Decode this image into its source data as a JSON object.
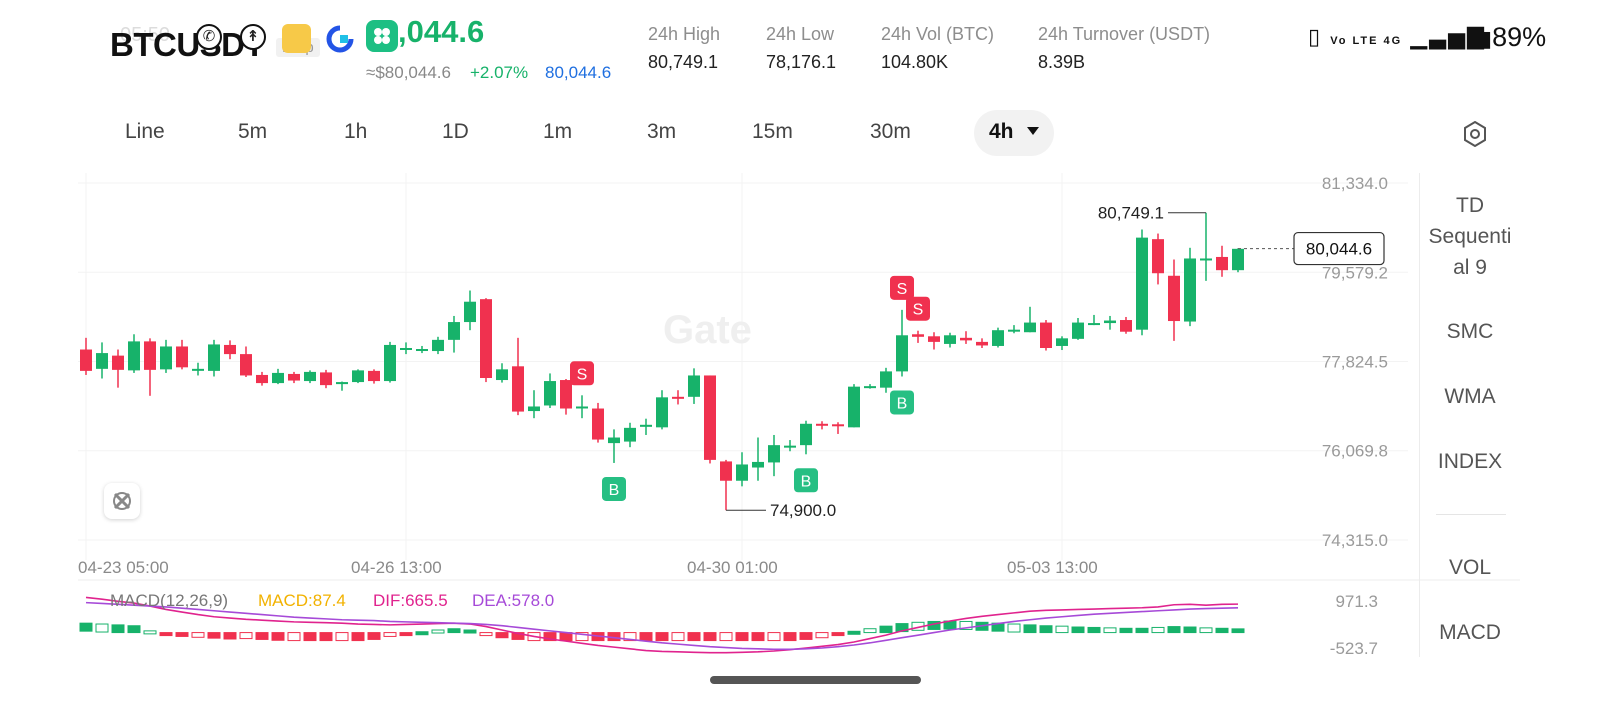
{
  "header": {
    "symbol": "BTCUSDT",
    "clock_ghost": "05:50",
    "perp_badge": "Perp",
    "last_price": "80,044.6",
    "last_price_visible": ",044.6",
    "usd_price": "≈$80,044.6",
    "change_pct": "+2.07%",
    "mark_price": "80,044.6"
  },
  "stats": [
    {
      "label": "24h   High",
      "value": "80,749.1"
    },
    {
      "label": "24h   Low",
      "value": "78,176.1"
    },
    {
      "label": "24h   Vol (BTC)",
      "value": "104.80K"
    },
    {
      "label": "24h   Turnover (USDT)",
      "value": "8.39B"
    }
  ],
  "status_bar": {
    "signal_text": "Vo LTE 4G",
    "battery": "89%"
  },
  "timeframes": [
    "Line",
    "5m",
    "1h",
    "1D",
    "1m",
    "3m",
    "15m",
    "30m"
  ],
  "active_timeframe": "4h",
  "indicators": {
    "td_sequential": [
      "TD",
      "Sequenti",
      "al 9"
    ],
    "items": [
      "SMC",
      "WMA",
      "INDEX"
    ],
    "sub_items": [
      "VOL",
      "MACD"
    ]
  },
  "macd": {
    "name": "MACD(12,26,9)",
    "macd": "MACD:87.4",
    "dif": "DIF:665.5",
    "dea": "DEA:578.0",
    "max_label": "971.3",
    "min_label": "-523.7"
  },
  "colors": {
    "up": "#17b26a",
    "down": "#f0314f",
    "dif": "#e0238e",
    "dea": "#a64ad8",
    "macd_label": "#f2b200",
    "accent": "#1f6fe0"
  },
  "chart_data": {
    "type": "candlestick",
    "interval": "4h",
    "y_tick_labels": [
      "81,334.0",
      "79,579.2",
      "77,824.5",
      "76,069.8",
      "74,315.0"
    ],
    "y_ticks": [
      81334.0,
      79579.2,
      77824.5,
      76069.8,
      74315.0
    ],
    "ylim": [
      74315.0,
      81334.0
    ],
    "x_tick_labels": [
      "04-23 05:00",
      "04-26 13:00",
      "04-30 01:00",
      "05-03 13:00"
    ],
    "x_tick_index": [
      0,
      20,
      41,
      61
    ],
    "current_price_label": "80,044.6",
    "current_price": 80044.6,
    "high_annotation": {
      "label": "80,749.1",
      "value": 80749.1,
      "index": 70
    },
    "low_annotation": {
      "label": "74,900.0",
      "value": 74900.0,
      "index": 40
    },
    "candles": [
      [
        78060,
        77640,
        78290,
        77560
      ],
      [
        77680,
        77990,
        78200,
        77490
      ],
      [
        77940,
        77660,
        78060,
        77310
      ],
      [
        77650,
        78220,
        78360,
        77600
      ],
      [
        78220,
        77660,
        78280,
        77150
      ],
      [
        77670,
        78120,
        78250,
        77600
      ],
      [
        78120,
        77710,
        78250,
        77670
      ],
      [
        77680,
        77680,
        77800,
        77550
      ],
      [
        77640,
        78160,
        78250,
        77530
      ],
      [
        78150,
        77970,
        78240,
        77870
      ],
      [
        77970,
        77550,
        78120,
        77520
      ],
      [
        77560,
        77400,
        77620,
        77350
      ],
      [
        77400,
        77600,
        77680,
        77380
      ],
      [
        77580,
        77450,
        77620,
        77400
      ],
      [
        77440,
        77620,
        77650,
        77400
      ],
      [
        77610,
        77360,
        77660,
        77300
      ],
      [
        77380,
        77420,
        77430,
        77250
      ],
      [
        77420,
        77650,
        77670,
        77400
      ],
      [
        77640,
        77440,
        77670,
        77390
      ],
      [
        77440,
        78150,
        78210,
        77410
      ],
      [
        78090,
        78090,
        78200,
        77970
      ],
      [
        78070,
        78070,
        78130,
        77990
      ],
      [
        78030,
        78250,
        78310,
        77970
      ],
      [
        78250,
        78600,
        78720,
        78000
      ],
      [
        78600,
        79000,
        79220,
        78440
      ],
      [
        79050,
        77500,
        79070,
        77420
      ],
      [
        77460,
        77670,
        77790,
        77410
      ],
      [
        77730,
        76840,
        78290,
        76770
      ],
      [
        76850,
        76940,
        77260,
        76710
      ],
      [
        76960,
        77440,
        77590,
        76910
      ],
      [
        77460,
        76900,
        77480,
        76780
      ],
      [
        76910,
        76940,
        77160,
        76710
      ],
      [
        76900,
        76290,
        77010,
        76230
      ],
      [
        76220,
        76330,
        76490,
        75830
      ],
      [
        76250,
        76520,
        76620,
        76140
      ],
      [
        76540,
        76580,
        76700,
        76380
      ],
      [
        76530,
        77120,
        77260,
        76490
      ],
      [
        77130,
        77120,
        77260,
        76980
      ],
      [
        77130,
        77550,
        77690,
        76990
      ],
      [
        77550,
        75890,
        77550,
        75820
      ],
      [
        75860,
        75480,
        75890,
        74900
      ],
      [
        75480,
        75800,
        76040,
        75370
      ],
      [
        75740,
        75850,
        76330,
        75480
      ],
      [
        75840,
        76180,
        76380,
        75570
      ],
      [
        76150,
        76170,
        76280,
        76060
      ],
      [
        76180,
        76600,
        76660,
        76000
      ],
      [
        76600,
        76580,
        76650,
        76490
      ],
      [
        76590,
        76580,
        76630,
        76400
      ],
      [
        76530,
        77330,
        77380,
        76530
      ],
      [
        77320,
        77340,
        77380,
        77290
      ],
      [
        77310,
        77630,
        77700,
        77210
      ],
      [
        77630,
        78340,
        78840,
        77530
      ],
      [
        78360,
        78310,
        78430,
        78190
      ],
      [
        78320,
        78210,
        78400,
        78060
      ],
      [
        78170,
        78340,
        78390,
        78100
      ],
      [
        78290,
        78240,
        78420,
        78170
      ],
      [
        78210,
        78140,
        78280,
        78090
      ],
      [
        78130,
        78440,
        78490,
        78100
      ],
      [
        78440,
        78450,
        78540,
        78380
      ],
      [
        78400,
        78590,
        78900,
        78400
      ],
      [
        78590,
        78090,
        78640,
        78040
      ],
      [
        78130,
        78280,
        78320,
        78050
      ],
      [
        78270,
        78590,
        78680,
        78250
      ],
      [
        78580,
        78580,
        78740,
        78540
      ],
      [
        78580,
        78630,
        78720,
        78450
      ],
      [
        78640,
        78410,
        78700,
        78370
      ],
      [
        78450,
        80260,
        80420,
        78340
      ],
      [
        80230,
        79560,
        80340,
        79340
      ],
      [
        79510,
        78620,
        79830,
        78230
      ],
      [
        78610,
        79850,
        80060,
        78520
      ],
      [
        79830,
        79850,
        80749,
        79410
      ],
      [
        79880,
        79620,
        80100,
        79490
      ],
      [
        79620,
        80040,
        80050,
        79580
      ]
    ],
    "markers": [
      {
        "type": "S",
        "index": 31
      },
      {
        "type": "B",
        "index": 33
      },
      {
        "type": "B",
        "index": 45
      },
      {
        "type": "S",
        "index": 51
      },
      {
        "type": "S",
        "index": 52
      },
      {
        "type": "B",
        "index": 51
      }
    ],
    "macd_range": [
      -523.7,
      971.3
    ],
    "macd_hist": [
      220,
      200,
      180,
      160,
      40,
      -60,
      -90,
      -110,
      -130,
      -150,
      -140,
      -160,
      -180,
      -200,
      -190,
      -220,
      -250,
      -210,
      -160,
      -90,
      -30,
      20,
      60,
      90,
      60,
      -20,
      -120,
      -160,
      -200,
      -230,
      -260,
      -300,
      -330,
      -360,
      -380,
      -400,
      -390,
      -380,
      -330,
      -330,
      -300,
      -280,
      -270,
      -240,
      -200,
      -160,
      -120,
      -60,
      30,
      90,
      150,
      210,
      240,
      260,
      270,
      260,
      240,
      220,
      200,
      180,
      160,
      150,
      130,
      120,
      110,
      100,
      100,
      120,
      140,
      130,
      110,
      100,
      87
    ],
    "dif": [
      820,
      780,
      730,
      690,
      620,
      540,
      480,
      420,
      370,
      340,
      310,
      290,
      270,
      250,
      240,
      230,
      220,
      200,
      190,
      180,
      190,
      200,
      210,
      220,
      200,
      140,
      60,
      -20,
      -90,
      -150,
      -200,
      -250,
      -300,
      -340,
      -380,
      -420,
      -440,
      -450,
      -460,
      -470,
      -470,
      -460,
      -450,
      -430,
      -400,
      -360,
      -320,
      -280,
      -220,
      -140,
      -60,
      40,
      120,
      200,
      270,
      330,
      380,
      420,
      460,
      500,
      520,
      530,
      540,
      550,
      560,
      570,
      580,
      600,
      650,
      660,
      640,
      660,
      665
    ],
    "dea": [
      700,
      680,
      660,
      640,
      620,
      600,
      570,
      540,
      510,
      480,
      450,
      420,
      390,
      360,
      340,
      320,
      300,
      290,
      280,
      260,
      250,
      240,
      230,
      220,
      210,
      190,
      160,
      120,
      80,
      40,
      0,
      -40,
      -80,
      -120,
      -160,
      -200,
      -240,
      -270,
      -300,
      -330,
      -350,
      -370,
      -380,
      -390,
      -390,
      -380,
      -360,
      -330,
      -290,
      -240,
      -180,
      -120,
      -60,
      0,
      60,
      110,
      160,
      210,
      260,
      300,
      340,
      370,
      400,
      430,
      450,
      470,
      490,
      510,
      530,
      550,
      560,
      570,
      578
    ]
  }
}
